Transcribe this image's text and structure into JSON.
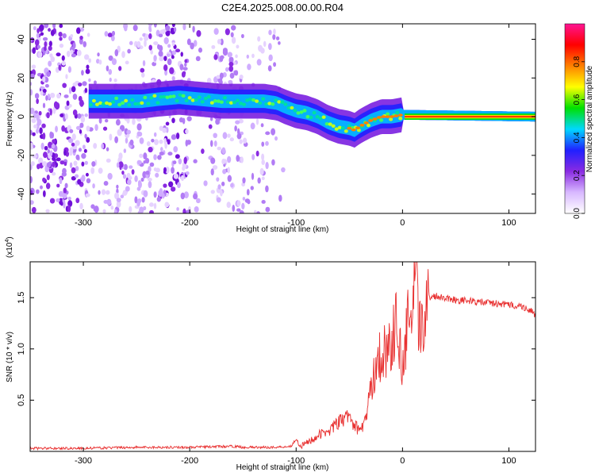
{
  "title": "C2E4.2025.008.00.00.R04",
  "chart_data": [
    {
      "type": "heatmap",
      "xlabel": "Height of straight line (km)",
      "ylabel": "Frequency (Hz)",
      "xlim": [
        -350,
        125
      ],
      "ylim": [
        -50,
        48
      ],
      "xticks": [
        -300,
        -200,
        -100,
        0,
        100
      ],
      "yticks": [
        -40,
        -20,
        0,
        20,
        40
      ],
      "colorbar": {
        "label": "Normalized spectral amplitude",
        "range": [
          0,
          1
        ],
        "ticks": [
          "0.0",
          "0.2",
          "0.4",
          "0.6",
          "0.8"
        ],
        "colors": [
          "#ffffff",
          "#d8b8ff",
          "#8a2be2",
          "#2020ff",
          "#00d8ff",
          "#00e000",
          "#ffff00",
          "#ff8000",
          "#ff0000",
          "#ff1493"
        ]
      },
      "ridge": {
        "x": [
          -295,
          -280,
          -260,
          -245,
          -230,
          -210,
          -190,
          -170,
          -150,
          -130,
          -118,
          -110,
          -100,
          -90,
          -80,
          -70,
          -60,
          -50,
          -45,
          -40,
          -30,
          -20,
          -10,
          0,
          125
        ],
        "frequency": [
          8,
          8,
          8,
          8,
          9,
          10,
          9,
          8,
          8,
          8,
          7,
          5,
          3,
          2,
          0,
          -3,
          -5,
          -6,
          -7,
          -5,
          -2,
          0,
          0,
          1,
          0
        ]
      }
    },
    {
      "type": "line",
      "ylabel": "SNR (10 * v/v)",
      "yscale_label": "(x10",
      "yscale_exp": "4",
      "xlabel": "Height of straight line (km)",
      "xlim": [
        -350,
        125
      ],
      "ylim": [
        0,
        1.85
      ],
      "xticks": [
        -300,
        -200,
        -100,
        0,
        100
      ],
      "yticks": [
        "0.5",
        "1.0",
        "1.5"
      ],
      "series": [
        {
          "name": "SNR",
          "color": "#e83030",
          "x": [
            -350,
            -300,
            -250,
            -200,
            -160,
            -150,
            -120,
            -105,
            -100,
            -95,
            -80,
            -70,
            -60,
            -50,
            -45,
            -40,
            -35,
            -30,
            -25,
            -20,
            -15,
            -10,
            -5,
            0,
            5,
            10,
            13,
            15,
            20,
            25,
            30,
            40,
            50,
            60,
            70,
            80,
            90,
            100,
            110,
            120,
            125
          ],
          "y": [
            0.03,
            0.03,
            0.04,
            0.04,
            0.05,
            0.04,
            0.04,
            0.05,
            0.12,
            0.05,
            0.15,
            0.2,
            0.28,
            0.35,
            0.25,
            0.2,
            0.3,
            0.6,
            0.85,
            0.95,
            1.0,
            1.05,
            1.3,
            0.75,
            1.25,
            1.4,
            1.82,
            1.1,
            1.35,
            1.5,
            1.52,
            1.5,
            1.48,
            1.47,
            1.46,
            1.45,
            1.44,
            1.43,
            1.42,
            1.38,
            1.32
          ]
        }
      ]
    }
  ]
}
